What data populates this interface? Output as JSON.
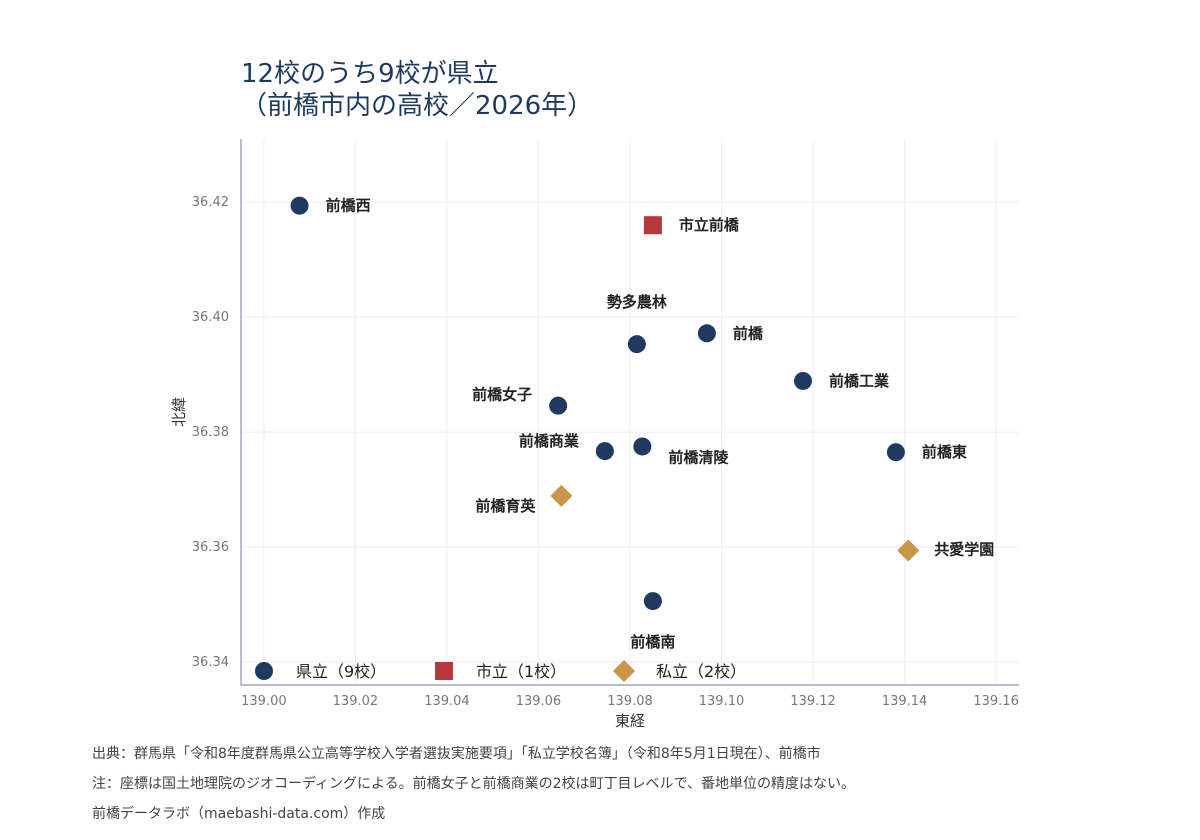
{
  "title": {
    "line1": "12校のうち9校が県立",
    "line2": "（前橋市内の高校／2026年）"
  },
  "chart_data": {
    "type": "scatter",
    "xlabel": "東経",
    "ylabel": "北緯",
    "xlim": [
      138.995,
      139.165
    ],
    "ylim": [
      36.336,
      36.431
    ],
    "xticks": [
      "139.00",
      "139.02",
      "139.04",
      "139.06",
      "139.08",
      "139.10",
      "139.12",
      "139.14",
      "139.16"
    ],
    "yticks": [
      "36.34",
      "36.36",
      "36.38",
      "36.40",
      "36.42"
    ],
    "grid": true,
    "legend_position": "bottom",
    "series": [
      {
        "name": "県立（9校）",
        "marker": "circle",
        "color": "#1f3a5f",
        "points": [
          {
            "x": 139.0078,
            "y": 36.4194,
            "label": "前橋西"
          },
          {
            "x": 139.0815,
            "y": 36.3953,
            "label": "勢多農林"
          },
          {
            "x": 139.0968,
            "y": 36.3972,
            "label": "前橋"
          },
          {
            "x": 139.1178,
            "y": 36.3889,
            "label": "前橋工業"
          },
          {
            "x": 139.0643,
            "y": 36.3846,
            "label": "前橋女子"
          },
          {
            "x": 139.0745,
            "y": 36.3767,
            "label": "前橋商業"
          },
          {
            "x": 139.0827,
            "y": 36.3775,
            "label": "前橋清陵"
          },
          {
            "x": 139.1381,
            "y": 36.3765,
            "label": "前橋東"
          },
          {
            "x": 139.085,
            "y": 36.3506,
            "label": "前橋南"
          }
        ]
      },
      {
        "name": "市立（1校）",
        "marker": "square",
        "color": "#b5383a",
        "points": [
          {
            "x": 139.085,
            "y": 36.416,
            "label": "市立前橋"
          }
        ]
      },
      {
        "name": "私立（2校）",
        "marker": "diamond",
        "color": "#c99547",
        "points": [
          {
            "x": 139.065,
            "y": 36.3689,
            "label": "前橋育英"
          },
          {
            "x": 139.1408,
            "y": 36.3594,
            "label": "共愛学園"
          }
        ]
      }
    ]
  },
  "notes": {
    "source": "出典：群馬県「令和8年度群馬県公立高等学校入学者選抜実施要項」「私立学校名簿」（令和8年5月1日現在）、前橋市",
    "note": "注：座標は国土地理院のジオコーディングによる。前橋女子と前橋商業の2校は町丁目レベルで、番地単位の精度はない。",
    "credit": "前橋データラボ（maebashi-data.com）作成"
  }
}
